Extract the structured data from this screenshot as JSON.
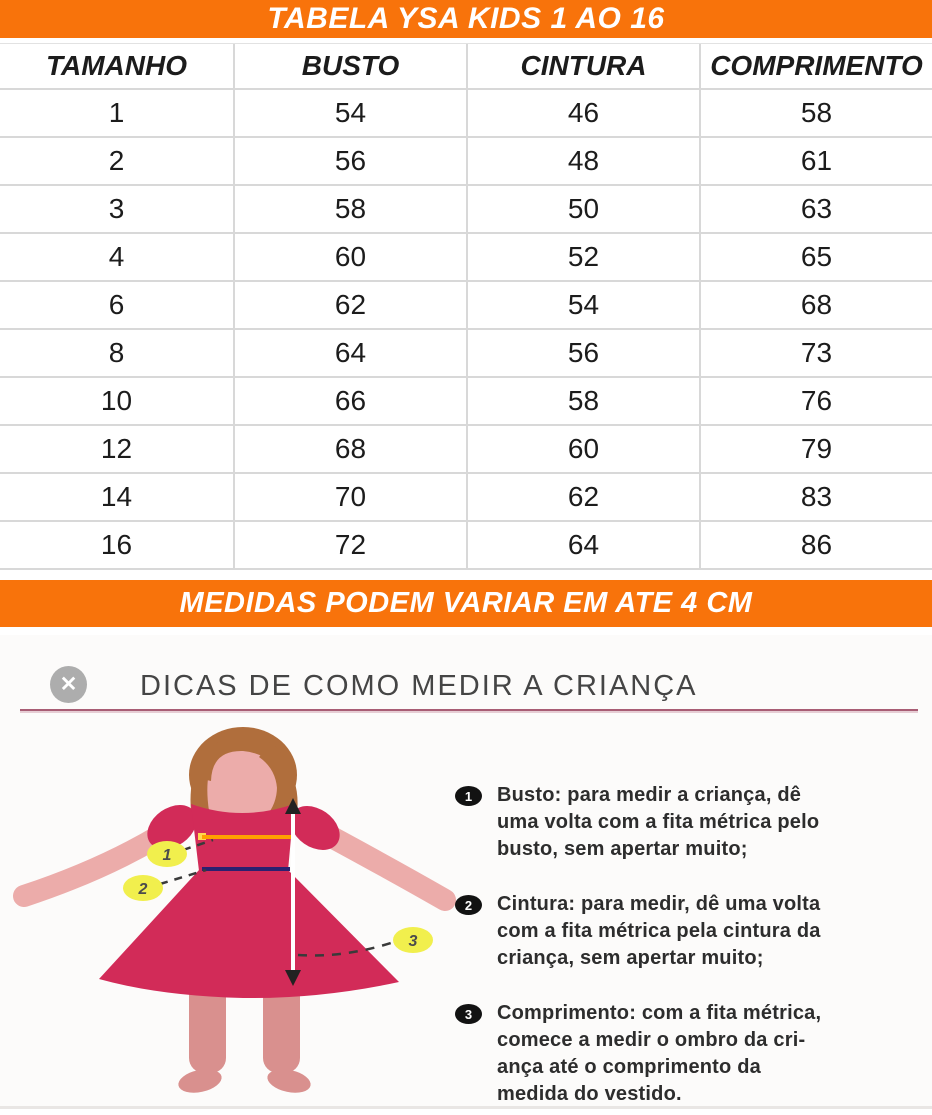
{
  "title_banner": {
    "text": "TABELA YSA KIDS 1 AO 16",
    "bg": "#F8730B",
    "fg": "#FFFFFF"
  },
  "note_banner": {
    "text": "MEDIDAS PODEM VARIAR EM ATE 4 CM",
    "bg": "#F8730B",
    "fg": "#FFFFFF"
  },
  "table": {
    "headers": [
      "TAMANHO",
      "BUSTO",
      "CINTURA",
      "COMPRIMENTO"
    ],
    "rows": [
      [
        "1",
        "54",
        "46",
        "58"
      ],
      [
        "2",
        "56",
        "48",
        "61"
      ],
      [
        "3",
        "58",
        "50",
        "63"
      ],
      [
        "4",
        "60",
        "52",
        "65"
      ],
      [
        "6",
        "62",
        "54",
        "68"
      ],
      [
        "8",
        "64",
        "56",
        "73"
      ],
      [
        "10",
        "66",
        "58",
        "76"
      ],
      [
        "12",
        "68",
        "60",
        "79"
      ],
      [
        "14",
        "70",
        "62",
        "83"
      ],
      [
        "16",
        "72",
        "64",
        "86"
      ]
    ]
  },
  "chart_data": {
    "type": "table",
    "title": "TABELA YSA KIDS 1 AO 16",
    "columns": [
      "TAMANHO",
      "BUSTO",
      "CINTURA",
      "COMPRIMENTO"
    ],
    "rows": [
      [
        1,
        54,
        46,
        58
      ],
      [
        2,
        56,
        48,
        61
      ],
      [
        3,
        58,
        50,
        63
      ],
      [
        4,
        60,
        52,
        65
      ],
      [
        6,
        62,
        54,
        68
      ],
      [
        8,
        64,
        56,
        73
      ],
      [
        10,
        66,
        58,
        76
      ],
      [
        12,
        68,
        60,
        79
      ],
      [
        14,
        70,
        62,
        83
      ],
      [
        16,
        72,
        64,
        86
      ]
    ],
    "note": "MEDIDAS PODEM VARIAR EM ATE 4 CM"
  },
  "tips": {
    "heading": "DICAS DE COMO MEDIR A CRIANÇA",
    "close_icon": "✕",
    "items": [
      {
        "num": "1",
        "lines": [
          "Busto: para medir a criança, dê",
          "uma volta com a fita métrica pelo",
          "busto, sem apertar muito;"
        ]
      },
      {
        "num": "2",
        "lines": [
          "Cintura: para medir, dê uma volta",
          "com a fita métrica pela cintura da",
          "criança, sem apertar muito;"
        ]
      },
      {
        "num": "3",
        "lines": [
          "Comprimento: com a fita métrica,",
          "comece a medir o ombro da cri-",
          "ança até o comprimento da",
          "medida do vestido."
        ]
      }
    ]
  },
  "figure": {
    "badges": [
      "1",
      "2",
      "3"
    ],
    "colors": {
      "dress": "#D22B58",
      "skin": "#ECACAA",
      "legs": "#D9908E",
      "hair": "#B06E3C",
      "bust_line": "#FFA000",
      "bust_nub": "#FFD94F",
      "waist_line": "#2B2070",
      "length_line": "#FFFFFF",
      "arrow_head": "#222222",
      "dash": "#3a3a3a",
      "badge_bg": "#F1EF4D",
      "badge_text": "#4c4c4c"
    }
  }
}
